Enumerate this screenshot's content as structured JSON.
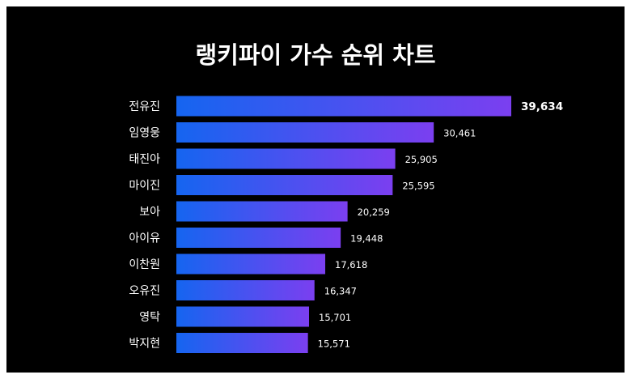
{
  "colors": {
    "background": "#000000",
    "frame_border": "#ffffff",
    "bar_gradient_start": "#1565f0",
    "bar_gradient_end": "#7b3ff0",
    "text": "#ffffff"
  },
  "chart_data": {
    "type": "bar",
    "orientation": "horizontal",
    "title": "랭키파이 가수 순위 차트",
    "xlabel": "",
    "ylabel": "",
    "grid": false,
    "legend": "none",
    "xlim": [
      0,
      39634
    ],
    "categories": [
      "전유진",
      "임영웅",
      "태진아",
      "마이진",
      "보아",
      "아이유",
      "이찬원",
      "오유진",
      "영탁",
      "박지현"
    ],
    "values": [
      39634,
      30461,
      25905,
      25595,
      20259,
      19448,
      17618,
      16347,
      15701,
      15571
    ],
    "value_labels": [
      "39,634",
      "30,461",
      "25,905",
      "25,595",
      "20,259",
      "19,448",
      "17,618",
      "16,347",
      "15,701",
      "15,571"
    ]
  }
}
